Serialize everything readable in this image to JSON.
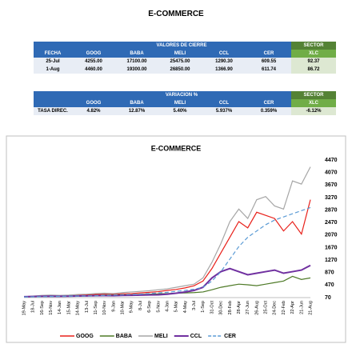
{
  "header": {
    "title": "E-COMMERCE"
  },
  "table1": {
    "group_header": "VALORES DE CIERRE",
    "sector_header": "SECTOR",
    "columns": [
      "FECHA",
      "GOOG",
      "BABA",
      "MELI",
      "CCL",
      "CER",
      "XLC"
    ],
    "rows": [
      [
        "25-Jul",
        "4255.00",
        "17100.00",
        "25475.00",
        "1290.30",
        "609.55",
        "92.37"
      ],
      [
        "1-Aug",
        "4460.00",
        "19300.00",
        "26850.00",
        "1366.90",
        "611.74",
        "86.72"
      ]
    ]
  },
  "table2": {
    "group_header": "VARIACION %",
    "sector_header": "SECTOR",
    "columns": [
      "GOOG",
      "BABA",
      "MELI",
      "CCL",
      "CER",
      "XLC"
    ],
    "rows": [
      [
        "TASA DIREC.",
        "4.82%",
        "12.87%",
        "5.40%",
        "5.937%",
        "0.359%",
        "-6.12%"
      ]
    ]
  },
  "chart_data": {
    "type": "line",
    "title": "E-COMMERCE",
    "categories": [
      "19-May",
      "18-Jul",
      "16-Sep",
      "15-Nov",
      "14-Jan",
      "15-Mar",
      "14-May",
      "13-Jul",
      "11-Sep",
      "10-Nov",
      "9-Jan",
      "10-Mar",
      "9-May",
      "8-Jul",
      "6-Sep",
      "5-Nov",
      "4-Jan",
      "5-Mar",
      "4-May",
      "3-Jul",
      "1-Sep",
      "31-Oct",
      "30-Dec",
      "28-Feb",
      "28-Apr",
      "27-Jun",
      "26-Aug",
      "25-Oct",
      "24-Dec",
      "22-Feb",
      "22-Apr",
      "21-Jun",
      "21-Aug"
    ],
    "ylim": [
      70,
      4470
    ],
    "yticks": [
      70,
      470,
      870,
      1270,
      1670,
      2070,
      2470,
      2870,
      3270,
      3670,
      4070,
      4470
    ],
    "legend": "bottom",
    "series": [
      {
        "name": "GOOG",
        "color": "#e8201a",
        "values": [
          100,
          110,
          120,
          130,
          120,
          140,
          150,
          160,
          170,
          180,
          170,
          190,
          200,
          220,
          240,
          260,
          300,
          330,
          380,
          450,
          600,
          1000,
          1500,
          2000,
          2500,
          2300,
          2800,
          2700,
          2600,
          2200,
          2500,
          2100,
          3200
        ]
      },
      {
        "name": "BABA",
        "color": "#4e7a27",
        "values": [
          100,
          105,
          110,
          120,
          110,
          120,
          130,
          130,
          140,
          150,
          150,
          160,
          160,
          170,
          180,
          190,
          200,
          210,
          220,
          230,
          250,
          320,
          400,
          450,
          500,
          480,
          450,
          500,
          550,
          600,
          750,
          650,
          700
        ]
      },
      {
        "name": "MELI",
        "color": "#a6a6a6",
        "values": [
          100,
          120,
          140,
          150,
          140,
          150,
          170,
          180,
          200,
          210,
          200,
          230,
          250,
          270,
          290,
          320,
          350,
          400,
          450,
          500,
          700,
          1200,
          1800,
          2500,
          2900,
          2600,
          3200,
          3300,
          3000,
          2900,
          3800,
          3700,
          4250
        ]
      },
      {
        "name": "CCL",
        "color": "#7030a0",
        "values": [
          100,
          105,
          110,
          115,
          110,
          115,
          120,
          125,
          130,
          135,
          130,
          140,
          145,
          150,
          155,
          160,
          180,
          210,
          250,
          300,
          400,
          700,
          900,
          1000,
          900,
          800,
          850,
          900,
          950,
          850,
          900,
          950,
          1100
        ]
      },
      {
        "name": "CER",
        "color": "#5b9bd5",
        "values": [
          90,
          95,
          100,
          105,
          110,
          115,
          120,
          125,
          130,
          140,
          150,
          160,
          170,
          180,
          200,
          220,
          240,
          270,
          300,
          340,
          400,
          600,
          900,
          1300,
          1700,
          2000,
          2200,
          2400,
          2550,
          2650,
          2750,
          2850,
          2950
        ]
      }
    ]
  }
}
